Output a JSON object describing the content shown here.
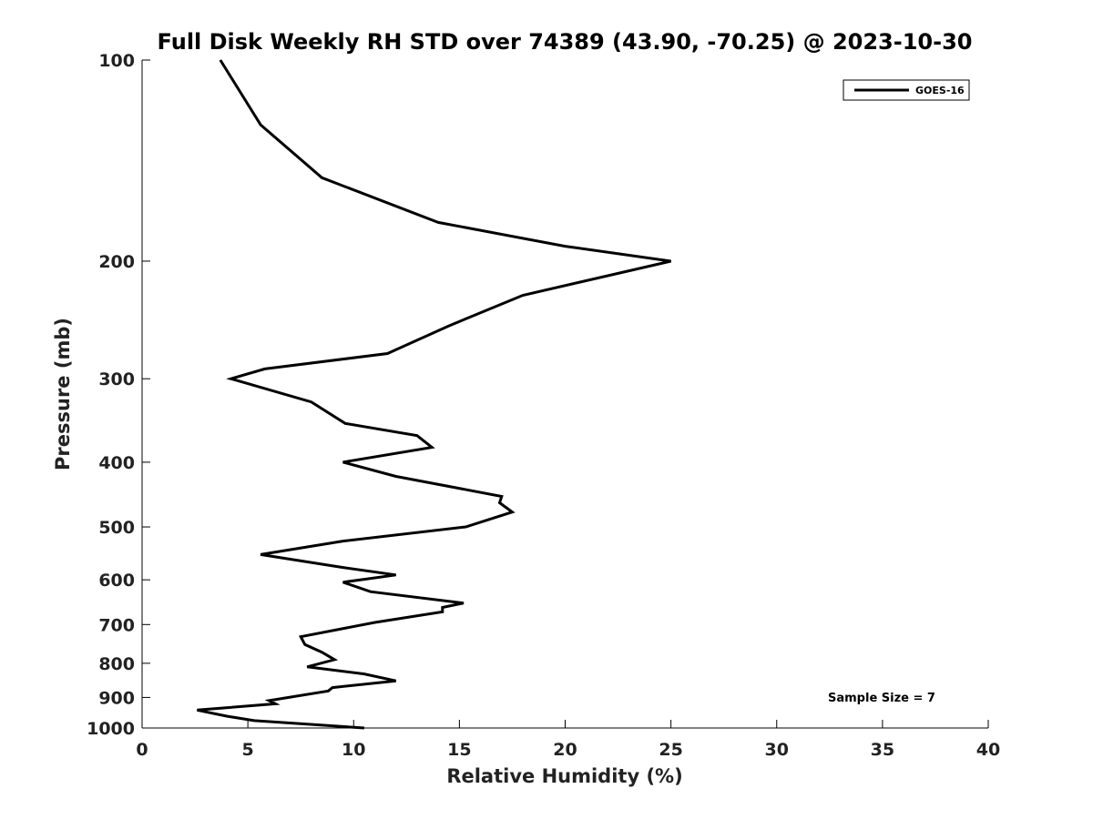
{
  "chart_data": {
    "type": "line",
    "title": "Full Disk Weekly RH STD over 74389 (43.90, -70.25) @ 2023-10-30",
    "xlabel": "Relative Humidity (%)",
    "ylabel": "Pressure (mb)",
    "xlim": [
      0,
      40
    ],
    "ylim": [
      100,
      1000
    ],
    "y_scale": "log",
    "y_reversed": true,
    "x_ticks": [
      0,
      5,
      10,
      15,
      20,
      25,
      30,
      35,
      40
    ],
    "y_ticks": [
      100,
      200,
      300,
      400,
      500,
      600,
      700,
      800,
      900,
      1000
    ],
    "grid": false,
    "legend_position": "top-right",
    "annotation": "Sample Size = 7",
    "series": [
      {
        "name": "GOES-16",
        "color": "#000000",
        "points": [
          [
            3.7,
            100
          ],
          [
            5.6,
            125
          ],
          [
            8.5,
            150
          ],
          [
            14.0,
            175
          ],
          [
            20.0,
            190
          ],
          [
            25.0,
            200
          ],
          [
            18.0,
            225
          ],
          [
            14.5,
            250
          ],
          [
            11.6,
            275
          ],
          [
            5.8,
            290
          ],
          [
            4.2,
            300
          ],
          [
            8.0,
            325
          ],
          [
            9.6,
            350
          ],
          [
            13.0,
            365
          ],
          [
            13.7,
            380
          ],
          [
            9.5,
            400
          ],
          [
            12.0,
            420
          ],
          [
            17.0,
            450
          ],
          [
            16.9,
            460
          ],
          [
            17.5,
            475
          ],
          [
            15.3,
            500
          ],
          [
            9.5,
            525
          ],
          [
            5.6,
            550
          ],
          [
            9.5,
            575
          ],
          [
            12.0,
            590
          ],
          [
            9.5,
            605
          ],
          [
            10.8,
            625
          ],
          [
            15.2,
            650
          ],
          [
            14.2,
            660
          ],
          [
            14.2,
            670
          ],
          [
            11.0,
            695
          ],
          [
            7.5,
            730
          ],
          [
            7.7,
            750
          ],
          [
            8.5,
            770
          ],
          [
            9.1,
            790
          ],
          [
            7.8,
            810
          ],
          [
            10.5,
            830
          ],
          [
            12.0,
            850
          ],
          [
            9.0,
            870
          ],
          [
            8.8,
            880
          ],
          [
            6.0,
            910
          ],
          [
            6.3,
            920
          ],
          [
            2.6,
            940
          ],
          [
            4.0,
            960
          ],
          [
            5.3,
            975
          ],
          [
            10.5,
            1000
          ]
        ]
      }
    ]
  }
}
